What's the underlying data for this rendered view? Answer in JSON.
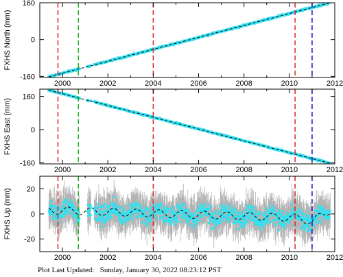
{
  "footer": {
    "label": "Plot Last Updated:",
    "timestamp": "Sunday, January 30, 2022 08:23:12 PST"
  },
  "colors": {
    "data": "#33e0f0",
    "error_bars": "#b4b4b4",
    "model": "#000000",
    "red_line": "#e02020",
    "green_line": "#20b020",
    "blue_line": "#1010c0"
  },
  "chart_data": [
    {
      "type": "scatter",
      "id": "north",
      "ylabel": "FXHS North (mm)",
      "xlim": [
        1999,
        2012
      ],
      "ylim": [
        -165,
        160
      ],
      "x_ticks": [
        2000,
        2002,
        2004,
        2006,
        2008,
        2010,
        2012
      ],
      "x_tick_labels": [
        "2000",
        "2002",
        "2004",
        "2006",
        "2008",
        "2010",
        "2012"
      ],
      "y_ticks": [
        -160,
        0,
        160
      ],
      "y_tick_labels": [
        "-160",
        "0",
        "160"
      ],
      "trend": [
        [
          1999.4,
          -162
        ],
        [
          2011.8,
          160
        ]
      ],
      "gaps": [
        [
          2000.75,
          2001.1
        ],
        [
          2001.25,
          2001.4
        ]
      ],
      "noise": 5,
      "seasonal": 0,
      "error_bars": false,
      "vlines": [
        {
          "x": 1999.8,
          "color": "red"
        },
        {
          "x": 2000.7,
          "color": "green"
        },
        {
          "x": 2004.0,
          "color": "red"
        },
        {
          "x": 2010.25,
          "color": "red"
        },
        {
          "x": 2011.0,
          "color": "blue"
        }
      ],
      "grid": false,
      "legend": "none"
    },
    {
      "type": "scatter",
      "id": "east",
      "ylabel": "FXHS East (mm)",
      "xlim": [
        1999,
        2012
      ],
      "ylim": [
        -165,
        195
      ],
      "x_ticks": [
        2000,
        2002,
        2004,
        2006,
        2008,
        2010,
        2012
      ],
      "x_tick_labels": [
        "2000",
        "2002",
        "2004",
        "2006",
        "2008",
        "2010",
        "2012"
      ],
      "y_ticks": [
        -160,
        0,
        160
      ],
      "y_tick_labels": [
        "-160",
        "0",
        "160"
      ],
      "trend": [
        [
          1999.4,
          190
        ],
        [
          2011.8,
          -162
        ]
      ],
      "gaps": [
        [
          2000.75,
          2001.1
        ],
        [
          2001.25,
          2001.4
        ]
      ],
      "noise": 5,
      "seasonal": 0,
      "error_bars": false,
      "vlines": [
        {
          "x": 1999.8,
          "color": "red"
        },
        {
          "x": 2000.7,
          "color": "green"
        },
        {
          "x": 2004.0,
          "color": "red"
        },
        {
          "x": 2010.25,
          "color": "red"
        },
        {
          "x": 2011.0,
          "color": "blue"
        }
      ],
      "grid": false,
      "legend": "none"
    },
    {
      "type": "scatter",
      "id": "up",
      "ylabel": "FXHS Up (mm)",
      "xlim": [
        1999,
        2012
      ],
      "ylim": [
        -30,
        30
      ],
      "x_ticks": [
        2000,
        2002,
        2004,
        2006,
        2008,
        2010,
        2012
      ],
      "x_tick_labels": [
        "2000",
        "2002",
        "2004",
        "2006",
        "2008",
        "2010",
        "2012"
      ],
      "y_ticks": [
        -20,
        0,
        20
      ],
      "y_tick_labels": [
        "-20",
        "0",
        "20"
      ],
      "trend": [
        [
          1999.4,
          3
        ],
        [
          2010.3,
          -3
        ],
        [
          2011.0,
          -6
        ],
        [
          2011.8,
          3
        ]
      ],
      "gaps": [
        [
          2000.75,
          2001.1
        ],
        [
          2001.25,
          2001.4
        ]
      ],
      "noise": 5,
      "seasonal": 3,
      "error_bars": true,
      "vlines": [
        {
          "x": 1999.8,
          "color": "red"
        },
        {
          "x": 2000.7,
          "color": "green"
        },
        {
          "x": 2004.0,
          "color": "red"
        },
        {
          "x": 2010.25,
          "color": "red"
        },
        {
          "x": 2011.0,
          "color": "blue"
        }
      ],
      "grid": false,
      "legend": "none"
    }
  ]
}
